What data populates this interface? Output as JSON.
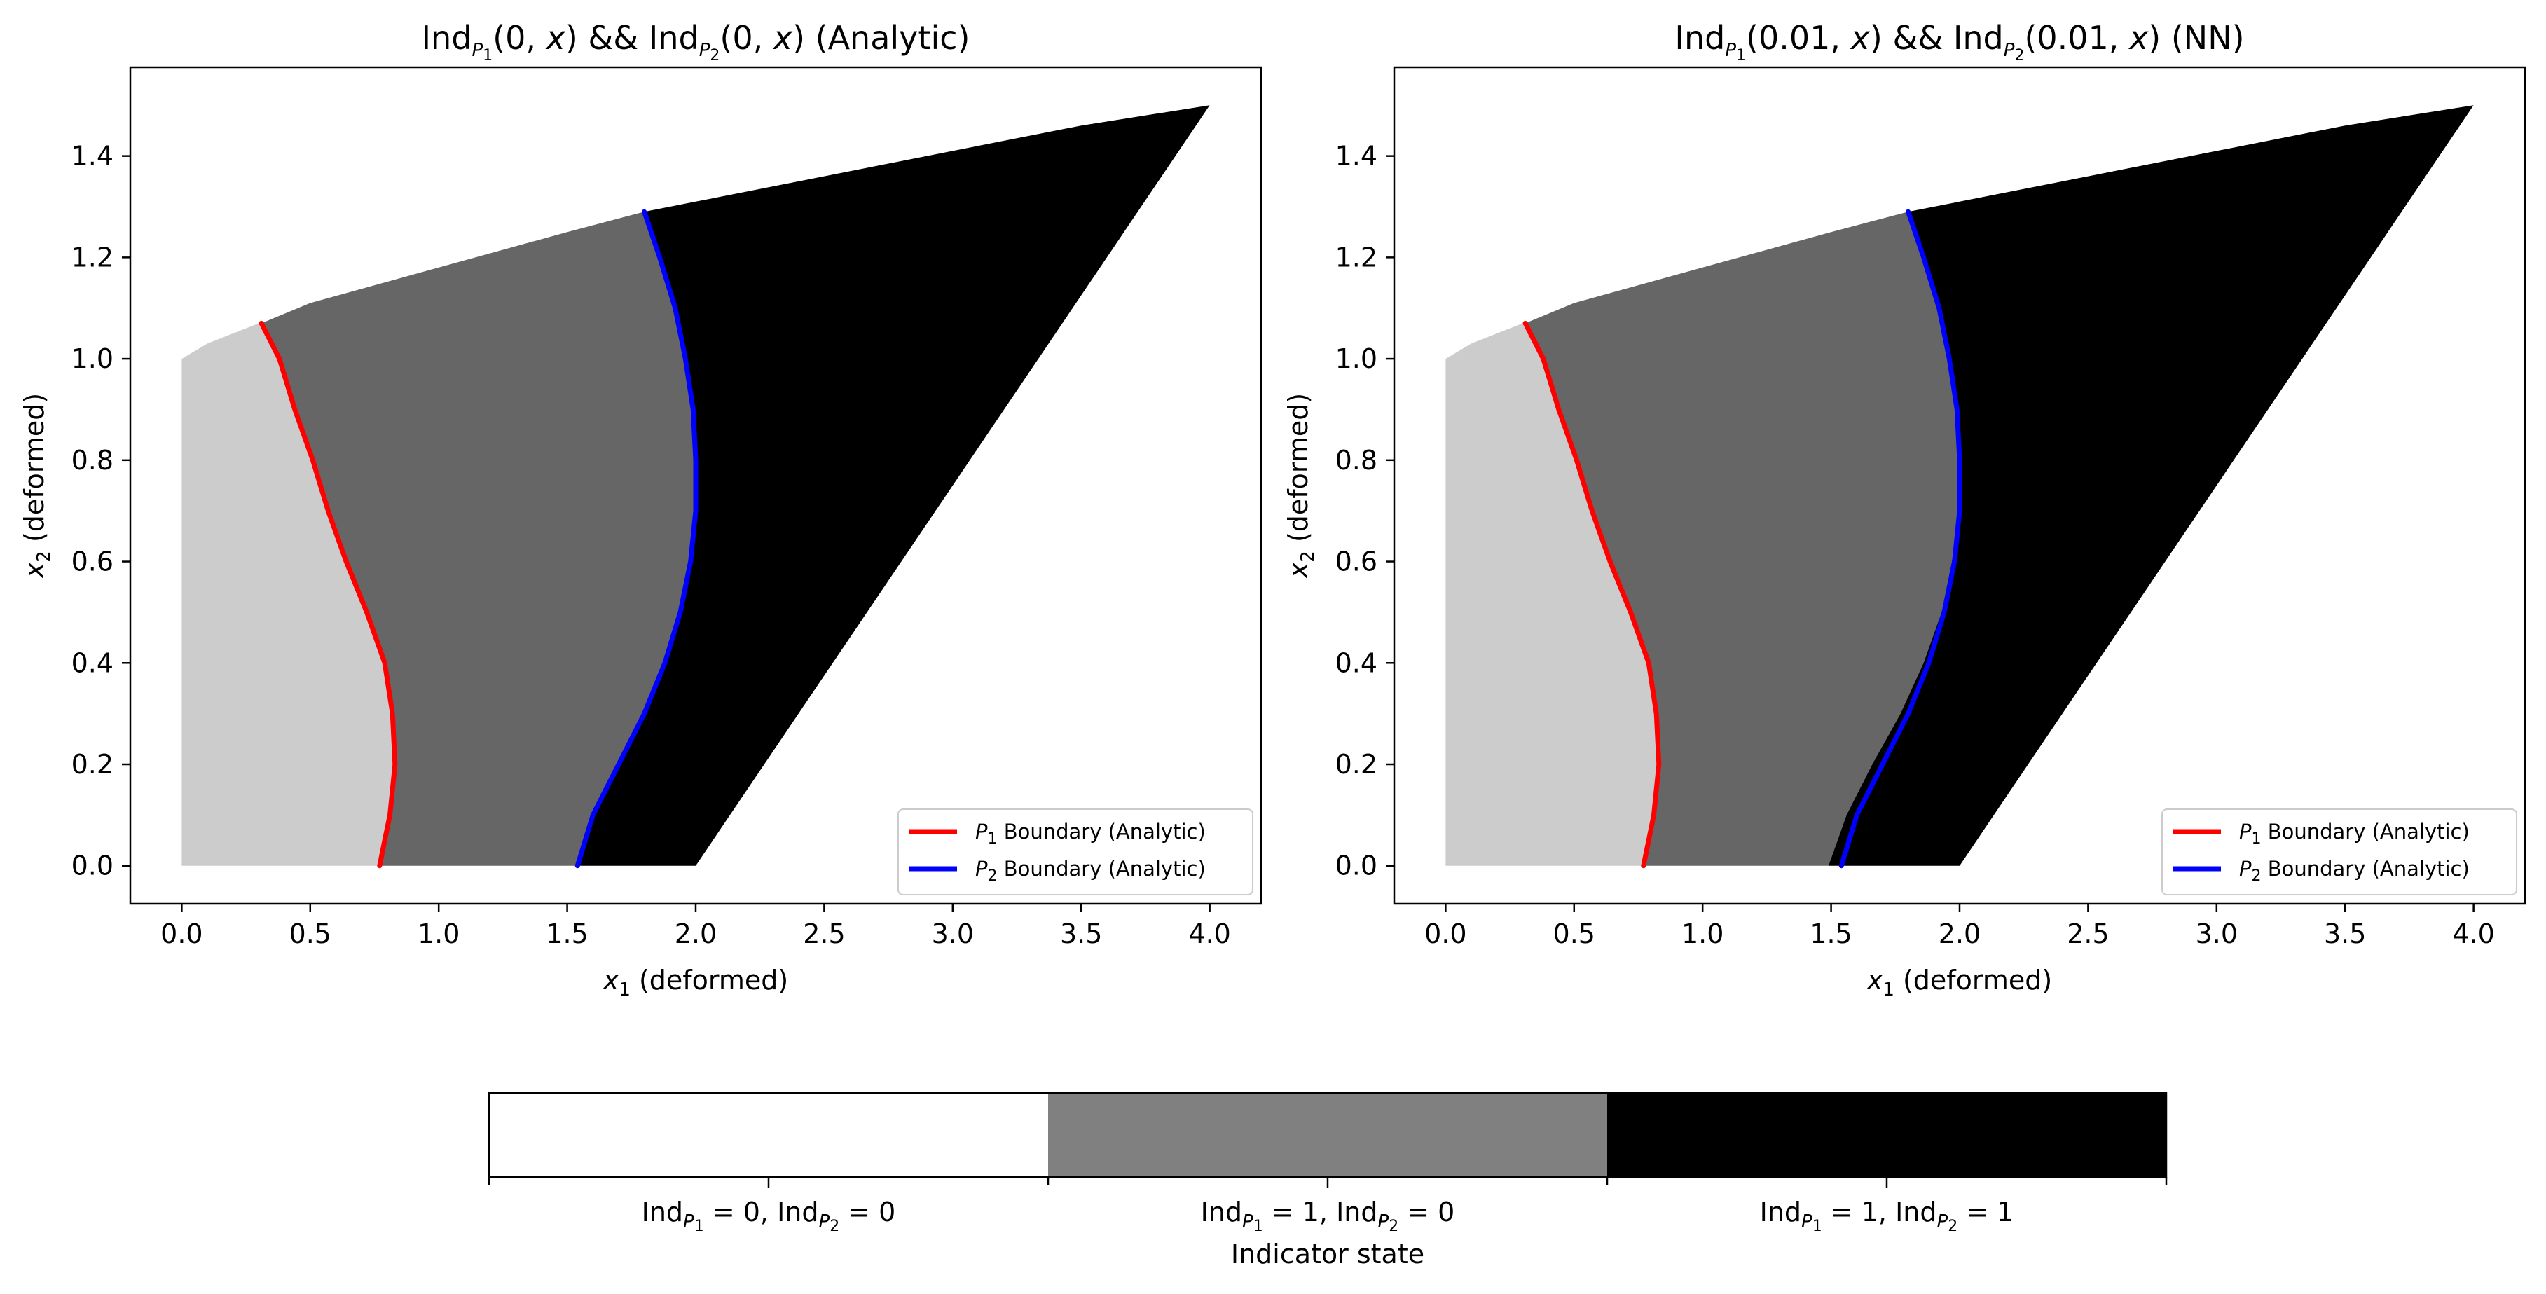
{
  "chart_data": [
    {
      "type": "area",
      "title": {
        "pre": "Ind",
        "sub1": "P",
        "subsub1": "1",
        "arg1": "(0, ",
        "var1": "x",
        "mid": ") && Ind",
        "sub2": "P",
        "subsub2": "2",
        "arg2": "(0, ",
        "var2": "x",
        "post": ") (Analytic)"
      },
      "xlabel": {
        "var": "x",
        "sub": "1",
        "text": " (deformed)"
      },
      "ylabel": {
        "var": "x",
        "sub": "2",
        "text": " (deformed)"
      },
      "xlim": [
        -0.2,
        4.2
      ],
      "ylim": [
        -0.075,
        1.575
      ],
      "xticks": [
        "0.0",
        "0.5",
        "1.0",
        "1.5",
        "2.0",
        "2.5",
        "3.0",
        "3.5",
        "4.0"
      ],
      "yticks": [
        "0.0",
        "0.2",
        "0.4",
        "0.6",
        "0.8",
        "1.0",
        "1.2",
        "1.4"
      ],
      "regions": [
        {
          "state": "Ind_P1=0, Ind_P2=0",
          "color": "#cccccc"
        },
        {
          "state": "Ind_P1=1, Ind_P2=0",
          "color": "#666666"
        },
        {
          "state": "Ind_P1=1, Ind_P2=1",
          "color": "#000000"
        }
      ],
      "domain_outline": [
        [
          0,
          0
        ],
        [
          2.0,
          0
        ],
        [
          4.0,
          1.5
        ],
        [
          3.5,
          1.46
        ],
        [
          3.0,
          1.41
        ],
        [
          2.5,
          1.36
        ],
        [
          2.0,
          1.31
        ],
        [
          1.5,
          1.25
        ],
        [
          1.0,
          1.18
        ],
        [
          0.5,
          1.11
        ],
        [
          0.3,
          1.07
        ],
        [
          0.1,
          1.03
        ],
        [
          0,
          1.0
        ]
      ],
      "series": [
        {
          "name": {
            "var": "P",
            "sub": "1",
            "text": " Boundary (Analytic)"
          },
          "color": "#ff0000",
          "points": [
            [
              0.77,
              0.0
            ],
            [
              0.79,
              0.05
            ],
            [
              0.81,
              0.1
            ],
            [
              0.83,
              0.2
            ],
            [
              0.82,
              0.3
            ],
            [
              0.79,
              0.4
            ],
            [
              0.72,
              0.5
            ],
            [
              0.64,
              0.6
            ],
            [
              0.57,
              0.7
            ],
            [
              0.51,
              0.8
            ],
            [
              0.44,
              0.9
            ],
            [
              0.38,
              1.0
            ],
            [
              0.31,
              1.07
            ]
          ]
        },
        {
          "name": {
            "var": "P",
            "sub": "2",
            "text": " Boundary (Analytic)"
          },
          "color": "#0000ff",
          "points": [
            [
              1.54,
              0.0
            ],
            [
              1.6,
              0.1
            ],
            [
              1.7,
              0.2
            ],
            [
              1.8,
              0.3
            ],
            [
              1.88,
              0.4
            ],
            [
              1.94,
              0.5
            ],
            [
              1.98,
              0.6
            ],
            [
              2.0,
              0.7
            ],
            [
              2.0,
              0.8
            ],
            [
              1.99,
              0.9
            ],
            [
              1.96,
              1.0
            ],
            [
              1.92,
              1.1
            ],
            [
              1.86,
              1.2
            ],
            [
              1.8,
              1.29
            ]
          ]
        }
      ],
      "legend_position": "lower-right"
    },
    {
      "type": "area",
      "title": {
        "pre": "Ind",
        "sub1": "P",
        "subsub1": "1",
        "arg1": "(0.01, ",
        "var1": "x",
        "mid": ") && Ind",
        "sub2": "P",
        "subsub2": "2",
        "arg2": "(0.01, ",
        "var2": "x",
        "post": ") (NN)"
      },
      "xlabel": {
        "var": "x",
        "sub": "1",
        "text": " (deformed)"
      },
      "ylabel": {
        "var": "x",
        "sub": "2",
        "text": " (deformed)"
      },
      "xlim": [
        -0.2,
        4.2
      ],
      "ylim": [
        -0.075,
        1.575
      ],
      "xticks": [
        "0.0",
        "0.5",
        "1.0",
        "1.5",
        "2.0",
        "2.5",
        "3.0",
        "3.5",
        "4.0"
      ],
      "yticks": [
        "0.0",
        "0.2",
        "0.4",
        "0.6",
        "0.8",
        "1.0",
        "1.2",
        "1.4"
      ],
      "regions": [
        {
          "state": "Ind_P1=0, Ind_P2=0",
          "color": "#cccccc"
        },
        {
          "state": "Ind_P1=1, Ind_P2=0",
          "color": "#666666"
        },
        {
          "state": "Ind_P1=1, Ind_P2=1",
          "color": "#000000"
        }
      ],
      "domain_outline": [
        [
          0,
          0
        ],
        [
          2.0,
          0
        ],
        [
          4.0,
          1.5
        ],
        [
          3.5,
          1.46
        ],
        [
          3.0,
          1.41
        ],
        [
          2.5,
          1.36
        ],
        [
          2.0,
          1.31
        ],
        [
          1.5,
          1.25
        ],
        [
          1.0,
          1.18
        ],
        [
          0.5,
          1.11
        ],
        [
          0.3,
          1.07
        ],
        [
          0.1,
          1.03
        ],
        [
          0,
          1.0
        ]
      ],
      "nn_p2_boundary": [
        [
          1.49,
          0.0
        ],
        [
          1.56,
          0.1
        ],
        [
          1.66,
          0.2
        ],
        [
          1.77,
          0.3
        ],
        [
          1.86,
          0.4
        ],
        [
          1.93,
          0.5
        ],
        [
          1.97,
          0.6
        ],
        [
          2.0,
          0.7
        ],
        [
          2.0,
          0.8
        ],
        [
          1.99,
          0.9
        ],
        [
          1.96,
          1.0
        ],
        [
          1.92,
          1.1
        ],
        [
          1.86,
          1.2
        ],
        [
          1.8,
          1.29
        ]
      ],
      "series": [
        {
          "name": {
            "var": "P",
            "sub": "1",
            "text": " Boundary (Analytic)"
          },
          "color": "#ff0000",
          "points": [
            [
              0.77,
              0.0
            ],
            [
              0.79,
              0.05
            ],
            [
              0.81,
              0.1
            ],
            [
              0.83,
              0.2
            ],
            [
              0.82,
              0.3
            ],
            [
              0.79,
              0.4
            ],
            [
              0.72,
              0.5
            ],
            [
              0.64,
              0.6
            ],
            [
              0.57,
              0.7
            ],
            [
              0.51,
              0.8
            ],
            [
              0.44,
              0.9
            ],
            [
              0.38,
              1.0
            ],
            [
              0.31,
              1.07
            ]
          ]
        },
        {
          "name": {
            "var": "P",
            "sub": "2",
            "text": " Boundary (Analytic)"
          },
          "color": "#0000ff",
          "points": [
            [
              1.54,
              0.0
            ],
            [
              1.6,
              0.1
            ],
            [
              1.7,
              0.2
            ],
            [
              1.8,
              0.3
            ],
            [
              1.88,
              0.4
            ],
            [
              1.94,
              0.5
            ],
            [
              1.98,
              0.6
            ],
            [
              2.0,
              0.7
            ],
            [
              2.0,
              0.8
            ],
            [
              1.99,
              0.9
            ],
            [
              1.96,
              1.0
            ],
            [
              1.92,
              1.1
            ],
            [
              1.86,
              1.2
            ],
            [
              1.8,
              1.29
            ]
          ]
        }
      ],
      "legend_position": "lower-right"
    }
  ],
  "colorbar": {
    "colors": [
      "#ffffff",
      "#808080",
      "#000000"
    ],
    "labels": [
      {
        "a_sub": "P",
        "a_subsub": "1",
        "a_val": " = 0, ",
        "b_sub": "P",
        "b_subsub": "2",
        "b_val": " = 0"
      },
      {
        "a_sub": "P",
        "a_subsub": "1",
        "a_val": " = 1, ",
        "b_sub": "P",
        "b_subsub": "2",
        "b_val": " = 0"
      },
      {
        "a_sub": "P",
        "a_subsub": "1",
        "a_val": " = 1, ",
        "b_sub": "P",
        "b_subsub": "2",
        "b_val": " = 1"
      }
    ],
    "ind": "Ind",
    "title": "Indicator state"
  }
}
